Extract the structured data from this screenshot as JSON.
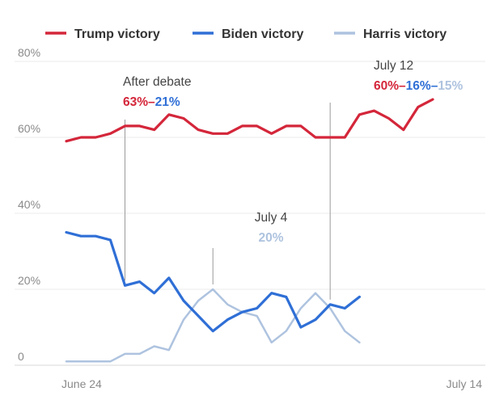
{
  "chart_data": {
    "type": "line",
    "title": "",
    "xlabel": "",
    "ylabel": "",
    "ylim": [
      0,
      85
    ],
    "grid": "horizontal",
    "legend_placement": "top",
    "x": [
      "June 24",
      "",
      "",
      "",
      "",
      "",
      "",
      "",
      "",
      "",
      "",
      "",
      "",
      "",
      "",
      "",
      "",
      "",
      "",
      "",
      "",
      "",
      "",
      "",
      "",
      "July 14"
    ],
    "x_ticks": [
      {
        "label": "June 24",
        "index": 0
      },
      {
        "label": "July 14",
        "index": 25
      }
    ],
    "y_ticks": [
      {
        "label": "0",
        "value": 0
      },
      {
        "label": "20%",
        "value": 20
      },
      {
        "label": "40%",
        "value": 40
      },
      {
        "label": "60%",
        "value": 60
      },
      {
        "label": "80%",
        "value": 80
      }
    ],
    "series": [
      {
        "name": "Trump victory",
        "color": "#d4263a",
        "values": [
          59,
          60,
          60,
          61,
          63,
          63,
          62,
          66,
          65,
          62,
          61,
          61,
          63,
          63,
          61,
          63,
          63,
          60,
          60,
          60,
          66,
          67,
          65,
          62,
          68,
          70
        ]
      },
      {
        "name": "Biden victory",
        "color": "#2f6fd6",
        "values": [
          35,
          34,
          34,
          33,
          21,
          22,
          19,
          23,
          17,
          13,
          9,
          12,
          14,
          15,
          19,
          18,
          10,
          12,
          16,
          15,
          18,
          null,
          null,
          null,
          null,
          null
        ]
      },
      {
        "name": "Harris victory",
        "color": "#aec3df",
        "values": [
          1,
          1,
          1,
          1,
          3,
          3,
          5,
          4,
          12,
          17,
          20,
          16,
          14,
          13,
          6,
          9,
          15,
          19,
          15,
          9,
          6,
          null,
          null,
          null,
          null,
          null
        ]
      }
    ],
    "annotations": [
      {
        "text": "After debate",
        "values": [
          {
            "text": "63%",
            "color": "#d4263a"
          },
          {
            "text": "–",
            "color": "#d4263a"
          },
          {
            "text": "21%",
            "color": "#2f6fd6"
          }
        ],
        "index": 4,
        "from": 63,
        "to": 21
      },
      {
        "text": "July 4",
        "values": [
          {
            "text": "20%",
            "color": "#aec3df"
          }
        ],
        "index": 10,
        "from": 20,
        "to": 20
      },
      {
        "text": "July 12",
        "values": [
          {
            "text": "60%",
            "color": "#d4263a"
          },
          {
            "text": "–",
            "color": "#d4263a"
          },
          {
            "text": "16%",
            "color": "#2f6fd6"
          },
          {
            "text": "–",
            "color": "#2f6fd6"
          },
          {
            "text": "15%",
            "color": "#aec3df"
          }
        ],
        "index": 18,
        "from": 60,
        "to": 16
      }
    ]
  }
}
